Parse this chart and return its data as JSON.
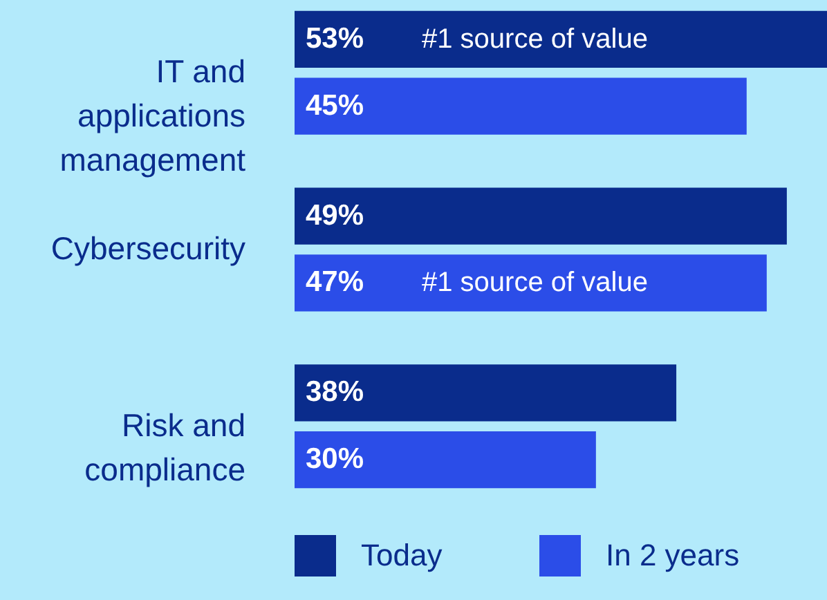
{
  "chart_data": {
    "type": "bar",
    "orientation": "horizontal",
    "categories": [
      "IT and applications management",
      "Cybersecurity",
      "Risk and compliance"
    ],
    "series": [
      {
        "name": "Today",
        "color": "#0a2c8c",
        "values": [
          53,
          49,
          38
        ],
        "value_labels": [
          "53%",
          "49%",
          "38%"
        ]
      },
      {
        "name": "In 2 years",
        "color": "#2b4de8",
        "values": [
          45,
          47,
          30
        ],
        "value_labels": [
          "45%",
          "47%",
          "30%"
        ]
      }
    ],
    "annotations": [
      "#1 source of value",
      "#1 source of value"
    ],
    "legend": "bottom"
  }
}
